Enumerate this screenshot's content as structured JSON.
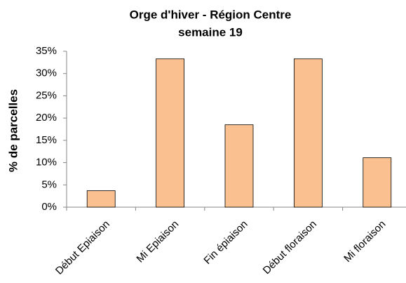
{
  "chart_data": {
    "type": "bar",
    "title": "Orge d'hiver - Région Centre",
    "subtitle": "semaine 19",
    "y_label": "% de parcelles",
    "categories": [
      "Début Epiaison",
      "Mi Epiaison",
      "Fin épiaison",
      "Début floraison",
      "Mi floraison"
    ],
    "values": [
      3.7,
      33.3,
      18.5,
      33.3,
      11.1
    ],
    "color": "#fac090",
    "ylim": [
      0,
      35
    ],
    "yticks": [
      {
        "value": 0,
        "label": "0%"
      },
      {
        "value": 5,
        "label": "5%"
      },
      {
        "value": 10,
        "label": "10%"
      },
      {
        "value": 15,
        "label": "15%"
      },
      {
        "value": 20,
        "label": "20%"
      },
      {
        "value": 25,
        "label": "25%"
      },
      {
        "value": 30,
        "label": "30%"
      },
      {
        "value": 35,
        "label": "35%"
      }
    ],
    "grid": false
  }
}
